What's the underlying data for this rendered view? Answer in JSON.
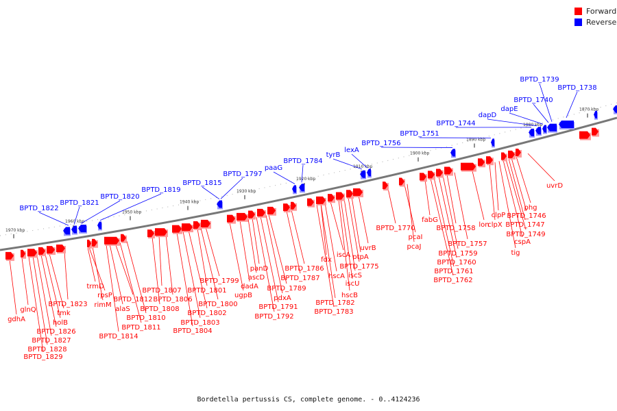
{
  "colors": {
    "forward": "#ff0000",
    "reverse": "#0000ff",
    "backbone": "#777777"
  },
  "legend": [
    {
      "label": "Forward",
      "color": "#ff0000"
    },
    {
      "label": "Reverse",
      "color": "#0000ff"
    }
  ],
  "caption": "Bordetella pertussis CS, complete genome. - 0..4124236",
  "ticks": [
    "1870 kbp",
    "1880 kbp",
    "1890 kbp",
    "1900 kbp",
    "1910 kbp",
    "1920 kbp",
    "1930 kbp",
    "1940 kbp",
    "1950 kbp",
    "1960 kbp",
    "1970 kbp"
  ],
  "reverse_genes": [
    "BPTD_1822",
    "BPTD_1821",
    "BPTD_1820",
    "BPTD_1819",
    "BPTD_1815",
    "BPTD_1797",
    "paaG",
    "BPTD_1784",
    "tyrB",
    "lexA",
    "BPTD_1756",
    "BPTD_1751",
    "BPTD_1744",
    "dapD",
    "dapE",
    "BPTD_1740",
    "BPTD_1739",
    "BPTD_1738"
  ],
  "forward_genes": [
    "gdhA",
    "glnQ",
    "BPTD_1829",
    "BPTD_1828",
    "BPTD_1827",
    "BPTD_1826",
    "holB",
    "tmk",
    "BPTD_1823",
    "BPTD_1814",
    "rimM",
    "rpsP",
    "trmD",
    "alaS",
    "BPTD_1812",
    "BPTD_1811",
    "BPTD_1810",
    "BPTD_1808",
    "BPTD_1807",
    "BPTD_1806",
    "BPTD_1804",
    "BPTD_1803",
    "BPTD_1802",
    "BPTD_1801",
    "BPTD_1800",
    "BPTD_1799",
    "ugpB",
    "dadA",
    "ascD",
    "panD",
    "BPTD_1792",
    "BPTD_1791",
    "pdxA",
    "BPTD_1789",
    "BPTD_1787",
    "BPTD_1786",
    "BPTD_1783",
    "BPTD_1782",
    "fdx",
    "hscA",
    "iscA",
    "hscB",
    "iscU",
    "iscS",
    "BPTD_1775",
    "ptpA",
    "uvrB",
    "BPTD_1770",
    "pcaI",
    "pcaJ",
    "fabG",
    "BPTD_1762",
    "BPTD_1761",
    "BPTD_1760",
    "BPTD_1759",
    "BPTD_1758",
    "BPTD_1757",
    "lon",
    "clpX",
    "clpP",
    "tig",
    "cspA",
    "BPTD_1749",
    "BPTD_1747",
    "BPTD_1746",
    "phg",
    "uvrD"
  ]
}
